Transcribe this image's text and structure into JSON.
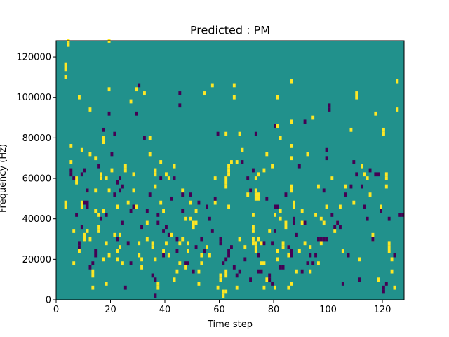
{
  "chart_data": {
    "type": "heatmap",
    "title": "Predicted : PM",
    "xlabel": "Time step",
    "ylabel": "Frequency (Hz)",
    "xlim": [
      0,
      128
    ],
    "ylim": [
      0,
      128000
    ],
    "x_ticks": [
      0,
      20,
      40,
      60,
      80,
      100,
      120
    ],
    "x_tick_labels": [
      "0",
      "20",
      "40",
      "60",
      "80",
      "100",
      "120"
    ],
    "y_ticks": [
      0,
      20000,
      40000,
      60000,
      80000,
      100000,
      120000
    ],
    "y_tick_labels": [
      "0",
      "20000",
      "40000",
      "60000",
      "80000",
      "100000",
      "120000"
    ],
    "grid": false,
    "colormap": "viridis",
    "colors": {
      "background": "#21918c",
      "high": "#fde725",
      "low": "#440154"
    },
    "cell_size": {
      "time_steps": 1,
      "frequency_hz": 2000
    },
    "levels": {
      "background": 0,
      "high": 1,
      "low": -1
    },
    "high_cells": [
      [
        3,
        113
      ],
      [
        3,
        115
      ],
      [
        3,
        109
      ],
      [
        3,
        47
      ],
      [
        3,
        45
      ],
      [
        4,
        127
      ],
      [
        4,
        125
      ],
      [
        5,
        67
      ],
      [
        5,
        75
      ],
      [
        6,
        33
      ],
      [
        6,
        17
      ],
      [
        7,
        59
      ],
      [
        7,
        57
      ],
      [
        8,
        99
      ],
      [
        8,
        23
      ],
      [
        9,
        73
      ],
      [
        9,
        47
      ],
      [
        9,
        45
      ],
      [
        10,
        31
      ],
      [
        10,
        29
      ],
      [
        11,
        53
      ],
      [
        11,
        33
      ],
      [
        12,
        93
      ],
      [
        12,
        71
      ],
      [
        12,
        29
      ],
      [
        13,
        13
      ],
      [
        13,
        11
      ],
      [
        13,
        5
      ],
      [
        14,
        53
      ],
      [
        14,
        43
      ],
      [
        14,
        69
      ],
      [
        15,
        35
      ],
      [
        15,
        33
      ],
      [
        15,
        41
      ],
      [
        16,
        61
      ],
      [
        16,
        59
      ],
      [
        17,
        19
      ],
      [
        17,
        77
      ],
      [
        17,
        79
      ],
      [
        17,
        43
      ],
      [
        18,
        7
      ],
      [
        18,
        27
      ],
      [
        18,
        59
      ],
      [
        19,
        21
      ],
      [
        19,
        53
      ],
      [
        19,
        103
      ],
      [
        19,
        127
      ],
      [
        20,
        63
      ],
      [
        21,
        31
      ],
      [
        22,
        23
      ],
      [
        22,
        19
      ],
      [
        22,
        45
      ],
      [
        23,
        25
      ],
      [
        23,
        31
      ],
      [
        24,
        17
      ],
      [
        25,
        65
      ],
      [
        25,
        63
      ],
      [
        26,
        47
      ],
      [
        27,
        97
      ],
      [
        28,
        53
      ],
      [
        28,
        61
      ],
      [
        29,
        103
      ],
      [
        29,
        45
      ],
      [
        30,
        21
      ],
      [
        30,
        27
      ],
      [
        31,
        15
      ],
      [
        31,
        19
      ],
      [
        32,
        101
      ],
      [
        33,
        37
      ],
      [
        33,
        29
      ],
      [
        34,
        79
      ],
      [
        34,
        71
      ],
      [
        35,
        27
      ],
      [
        35,
        25
      ],
      [
        36,
        19
      ],
      [
        36,
        61
      ],
      [
        36,
        63
      ],
      [
        36,
        55
      ],
      [
        37,
        7
      ],
      [
        37,
        5
      ],
      [
        38,
        67
      ],
      [
        38,
        47
      ],
      [
        39,
        23
      ],
      [
        39,
        43
      ],
      [
        40,
        27
      ],
      [
        40,
        61
      ],
      [
        41,
        59
      ],
      [
        41,
        21
      ],
      [
        42,
        31
      ],
      [
        43,
        9
      ],
      [
        43,
        65
      ],
      [
        44,
        13
      ],
      [
        45,
        17
      ],
      [
        45,
        27
      ],
      [
        46,
        29
      ],
      [
        46,
        53
      ],
      [
        47,
        15
      ],
      [
        47,
        39
      ],
      [
        48,
        23
      ],
      [
        48,
        27
      ],
      [
        49,
        47
      ],
      [
        49,
        39
      ],
      [
        50,
        35
      ],
      [
        50,
        37
      ],
      [
        51,
        37
      ],
      [
        51,
        43
      ],
      [
        52,
        7
      ],
      [
        52,
        13
      ],
      [
        53,
        17
      ],
      [
        53,
        21
      ],
      [
        54,
        101
      ],
      [
        55,
        25
      ],
      [
        56,
        21
      ],
      [
        57,
        105
      ],
      [
        58,
        47
      ],
      [
        58,
        59
      ],
      [
        59,
        5
      ],
      [
        60,
        9
      ],
      [
        60,
        11
      ],
      [
        61,
        3
      ],
      [
        61,
        1
      ],
      [
        62,
        3
      ],
      [
        62,
        11
      ],
      [
        62,
        13
      ],
      [
        62,
        55
      ],
      [
        62,
        57
      ],
      [
        62,
        59
      ],
      [
        62,
        81
      ],
      [
        63,
        45
      ],
      [
        63,
        61
      ],
      [
        63,
        63
      ],
      [
        63,
        65
      ],
      [
        64,
        67
      ],
      [
        65,
        105
      ],
      [
        65,
        99
      ],
      [
        66,
        67
      ],
      [
        66,
        5
      ],
      [
        67,
        29
      ],
      [
        67,
        81
      ],
      [
        68,
        73
      ],
      [
        69,
        25
      ],
      [
        70,
        51
      ],
      [
        71,
        53
      ],
      [
        72,
        41
      ],
      [
        72,
        33
      ],
      [
        72,
        35
      ],
      [
        72,
        27
      ],
      [
        72,
        29
      ],
      [
        73,
        59
      ],
      [
        73,
        53
      ],
      [
        73,
        51
      ],
      [
        73,
        49
      ],
      [
        73,
        23
      ],
      [
        73,
        25
      ],
      [
        73,
        27
      ],
      [
        74,
        61
      ],
      [
        74,
        29
      ],
      [
        74,
        49
      ],
      [
        74,
        51
      ],
      [
        75,
        17
      ],
      [
        75,
        27
      ],
      [
        76,
        63
      ],
      [
        76,
        17
      ],
      [
        76,
        5
      ],
      [
        77,
        71
      ],
      [
        77,
        9
      ],
      [
        78,
        33
      ],
      [
        79,
        65
      ],
      [
        80,
        41
      ],
      [
        80,
        5
      ],
      [
        81,
        99
      ],
      [
        81,
        85
      ],
      [
        81,
        19
      ],
      [
        81,
        23
      ],
      [
        82,
        79
      ],
      [
        82,
        43
      ],
      [
        82,
        39
      ],
      [
        83,
        27
      ],
      [
        83,
        25
      ],
      [
        84,
        35
      ],
      [
        84,
        37
      ],
      [
        85,
        25
      ],
      [
        85,
        21
      ],
      [
        85,
        5
      ],
      [
        86,
        53
      ],
      [
        86,
        55
      ],
      [
        86,
        69
      ],
      [
        86,
        75
      ],
      [
        86,
        87
      ],
      [
        86,
        107
      ],
      [
        86,
        7
      ],
      [
        87,
        45
      ],
      [
        87,
        47
      ],
      [
        88,
        13
      ],
      [
        89,
        23
      ],
      [
        90,
        37
      ],
      [
        90,
        43
      ],
      [
        91,
        27
      ],
      [
        92,
        71
      ],
      [
        93,
        13
      ],
      [
        93,
        25
      ],
      [
        94,
        89
      ],
      [
        95,
        41
      ],
      [
        96,
        55
      ],
      [
        96,
        17
      ],
      [
        97,
        39
      ],
      [
        97,
        27
      ],
      [
        98,
        37
      ],
      [
        99,
        45
      ],
      [
        101,
        59
      ],
      [
        102,
        33
      ],
      [
        103,
        37
      ],
      [
        104,
        45
      ],
      [
        105,
        23
      ],
      [
        106,
        55
      ],
      [
        108,
        83
      ],
      [
        109,
        47
      ],
      [
        110,
        99
      ],
      [
        110,
        101
      ],
      [
        111,
        19
      ],
      [
        112,
        65
      ],
      [
        113,
        61
      ],
      [
        114,
        59
      ],
      [
        115,
        51
      ],
      [
        116,
        29
      ],
      [
        116,
        31
      ],
      [
        117,
        91
      ],
      [
        118,
        9
      ],
      [
        119,
        45
      ],
      [
        120,
        81
      ],
      [
        120,
        83
      ],
      [
        121,
        55
      ],
      [
        121,
        59
      ],
      [
        121,
        61
      ],
      [
        122,
        27
      ],
      [
        122,
        25
      ],
      [
        122,
        23
      ],
      [
        123,
        19
      ],
      [
        123,
        13
      ],
      [
        124,
        5
      ],
      [
        125,
        107
      ],
      [
        125,
        93
      ]
    ],
    "low_cells": [
      [
        5,
        63
      ],
      [
        5,
        61
      ],
      [
        6,
        59
      ],
      [
        7,
        41
      ],
      [
        8,
        27
      ],
      [
        8,
        25
      ],
      [
        9,
        61
      ],
      [
        9,
        35
      ],
      [
        10,
        47
      ],
      [
        10,
        63
      ],
      [
        11,
        53
      ],
      [
        11,
        47
      ],
      [
        11,
        45
      ],
      [
        12,
        15
      ],
      [
        13,
        17
      ],
      [
        14,
        21
      ],
      [
        14,
        23
      ],
      [
        15,
        65
      ],
      [
        16,
        39
      ],
      [
        17,
        83
      ],
      [
        18,
        41
      ],
      [
        19,
        91
      ],
      [
        20,
        71
      ],
      [
        21,
        51
      ],
      [
        21,
        81
      ],
      [
        22,
        57
      ],
      [
        22,
        29
      ],
      [
        23,
        59
      ],
      [
        23,
        53
      ],
      [
        24,
        37
      ],
      [
        24,
        55
      ],
      [
        25,
        5
      ],
      [
        26,
        27
      ],
      [
        27,
        17
      ],
      [
        27,
        43
      ],
      [
        28,
        45
      ],
      [
        29,
        91
      ],
      [
        30,
        105
      ],
      [
        31,
        35
      ],
      [
        32,
        79
      ],
      [
        33,
        43
      ],
      [
        34,
        51
      ],
      [
        35,
        11
      ],
      [
        36,
        9
      ],
      [
        36,
        1
      ],
      [
        37,
        41
      ],
      [
        37,
        37
      ],
      [
        38,
        59
      ],
      [
        39,
        33
      ],
      [
        39,
        21
      ],
      [
        40,
        35
      ],
      [
        41,
        31
      ],
      [
        42,
        49
      ],
      [
        43,
        59
      ],
      [
        44,
        29
      ],
      [
        44,
        23
      ],
      [
        45,
        101
      ],
      [
        45,
        95
      ],
      [
        46,
        51
      ],
      [
        46,
        43
      ],
      [
        47,
        17
      ],
      [
        48,
        17
      ],
      [
        49,
        51
      ],
      [
        50,
        13
      ],
      [
        51,
        25
      ],
      [
        52,
        47
      ],
      [
        53,
        29
      ],
      [
        54,
        23
      ],
      [
        55,
        45
      ],
      [
        56,
        39
      ],
      [
        57,
        33
      ],
      [
        58,
        49
      ],
      [
        59,
        81
      ],
      [
        60,
        27
      ],
      [
        60,
        29
      ],
      [
        61,
        17
      ],
      [
        62,
        19
      ],
      [
        63,
        21
      ],
      [
        63,
        23
      ],
      [
        64,
        25
      ],
      [
        65,
        15
      ],
      [
        66,
        11
      ],
      [
        67,
        13
      ],
      [
        68,
        67
      ],
      [
        69,
        19
      ],
      [
        70,
        59
      ],
      [
        71,
        9
      ],
      [
        71,
        53
      ],
      [
        72,
        63
      ],
      [
        73,
        81
      ],
      [
        74,
        21
      ],
      [
        74,
        13
      ],
      [
        75,
        13
      ],
      [
        76,
        27
      ],
      [
        77,
        49
      ],
      [
        78,
        9
      ],
      [
        78,
        11
      ],
      [
        79,
        7
      ],
      [
        79,
        27
      ],
      [
        80,
        85
      ],
      [
        80,
        33
      ],
      [
        80,
        45
      ],
      [
        81,
        45
      ],
      [
        82,
        15
      ],
      [
        83,
        15
      ],
      [
        84,
        51
      ],
      [
        85,
        25
      ],
      [
        86,
        23
      ],
      [
        86,
        21
      ],
      [
        87,
        37
      ],
      [
        87,
        39
      ],
      [
        88,
        31
      ],
      [
        89,
        65
      ],
      [
        90,
        13
      ],
      [
        91,
        37
      ],
      [
        91,
        87
      ],
      [
        92,
        17
      ],
      [
        93,
        21
      ],
      [
        94,
        17
      ],
      [
        95,
        21
      ],
      [
        96,
        29
      ],
      [
        97,
        29
      ],
      [
        98,
        53
      ],
      [
        99,
        69
      ],
      [
        99,
        73
      ],
      [
        100,
        93
      ],
      [
        100,
        95
      ],
      [
        101,
        41
      ],
      [
        102,
        35
      ],
      [
        103,
        37
      ],
      [
        104,
        35
      ],
      [
        105,
        7
      ],
      [
        106,
        51
      ],
      [
        107,
        21
      ],
      [
        108,
        55
      ],
      [
        109,
        67
      ],
      [
        110,
        61
      ],
      [
        111,
        9
      ],
      [
        112,
        55
      ],
      [
        113,
        45
      ],
      [
        114,
        39
      ],
      [
        115,
        63
      ],
      [
        116,
        29
      ],
      [
        117,
        61
      ],
      [
        118,
        61
      ],
      [
        119,
        43
      ],
      [
        120,
        5
      ],
      [
        120,
        3
      ],
      [
        121,
        7
      ],
      [
        122,
        39
      ],
      [
        124,
        21
      ],
      [
        126,
        41
      ],
      [
        127,
        41
      ],
      [
        99,
        29
      ],
      [
        98,
        29
      ]
    ]
  }
}
